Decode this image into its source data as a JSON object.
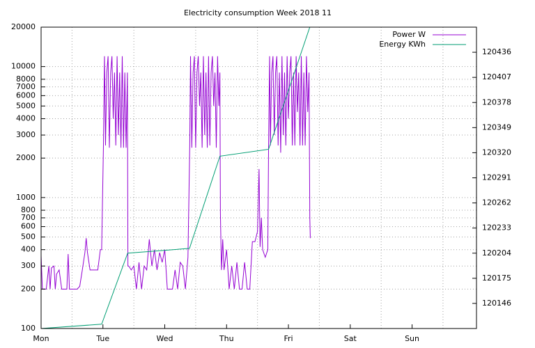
{
  "chart_data": {
    "type": "line",
    "title": "Electricity consumption Week 2018 11",
    "xlim": [
      0,
      169
    ],
    "xticks": [
      {
        "value": 0,
        "label": "Mon"
      },
      {
        "value": 24,
        "label": "Tue"
      },
      {
        "value": 48,
        "label": "Wed"
      },
      {
        "value": 72,
        "label": "Thu"
      },
      {
        "value": 96,
        "label": "Fri"
      },
      {
        "value": 120,
        "label": "Sat"
      },
      {
        "value": 144,
        "label": "Sun"
      }
    ],
    "xgrid": [
      12,
      36,
      60,
      84,
      108,
      132,
      156
    ],
    "ylim": [
      100,
      20000
    ],
    "log_y": true,
    "yticks": [
      100,
      200,
      300,
      400,
      500,
      600,
      700,
      800,
      1000,
      2000,
      3000,
      4000,
      5000,
      6000,
      7000,
      8000,
      10000,
      20000
    ],
    "y2lim": [
      120117,
      120465
    ],
    "y2ticks": [
      120146,
      120175,
      120204,
      120233,
      120262,
      120291,
      120320,
      120349,
      120378,
      120407,
      120436
    ],
    "grid": true,
    "legend": "top-right",
    "series": [
      {
        "name": "Power W",
        "color": "#9400d3",
        "x": [
          0,
          0.5,
          1,
          2,
          3,
          3.5,
          4,
          5,
          5.5,
          6,
          7,
          8,
          9,
          10,
          10.5,
          11,
          12,
          13,
          14,
          15,
          16,
          17,
          17.5,
          18,
          19,
          20,
          21,
          22,
          23,
          23.5,
          24.2,
          24.6,
          25,
          25.5,
          26,
          26.5,
          27,
          27.5,
          28,
          28.5,
          29,
          29.5,
          30,
          30.5,
          31,
          31.5,
          32,
          32.5,
          33,
          33.5,
          33.7,
          34,
          35,
          36,
          37,
          38,
          39,
          40,
          41,
          42,
          43,
          44,
          45,
          46,
          47,
          48,
          49,
          50,
          51,
          52,
          53,
          54,
          55,
          56,
          57,
          57.7,
          58,
          58.5,
          59,
          59.5,
          60,
          60.5,
          61,
          61.5,
          62,
          62.5,
          63,
          63.5,
          64,
          64.5,
          65,
          65.5,
          66,
          66.5,
          67,
          67.5,
          68,
          68.5,
          69,
          69.4,
          69.6,
          70,
          70.5,
          71,
          72,
          73,
          74,
          75,
          76,
          77,
          78,
          79,
          80,
          81,
          82,
          83,
          84,
          84.6,
          85,
          85.5,
          86,
          87,
          88,
          88.3,
          88.7,
          89,
          89.5,
          90,
          90.5,
          91,
          91.5,
          92,
          92.5,
          93,
          93.5,
          94,
          94.5,
          95,
          95.5,
          96,
          96.5,
          97,
          97.5,
          98,
          98.5,
          99,
          99.5,
          100,
          100.5,
          101,
          101.5,
          102,
          102.5,
          103,
          103.5,
          104,
          104.3,
          104.5
        ],
        "values": [
          360,
          200,
          200,
          200,
          300,
          200,
          290,
          300,
          200,
          260,
          280,
          200,
          200,
          200,
          370,
          200,
          200,
          200,
          200,
          210,
          280,
          380,
          490,
          380,
          280,
          280,
          280,
          280,
          400,
          400,
          2500,
          12000,
          2500,
          9000,
          12000,
          2400,
          9000,
          12000,
          4000,
          9000,
          2500,
          12000,
          3000,
          9000,
          2400,
          12000,
          2400,
          9000,
          2400,
          9000,
          300,
          300,
          280,
          300,
          200,
          320,
          200,
          300,
          280,
          480,
          300,
          400,
          280,
          380,
          320,
          400,
          200,
          200,
          200,
          280,
          200,
          320,
          300,
          200,
          350,
          2500,
          12000,
          2400,
          9000,
          12000,
          2400,
          9000,
          12000,
          5000,
          9000,
          2400,
          12000,
          3000,
          9000,
          2400,
          12000,
          2500,
          9000,
          12000,
          5000,
          9000,
          2400,
          12000,
          5000,
          9000,
          760,
          280,
          480,
          280,
          400,
          200,
          300,
          200,
          320,
          200,
          200,
          320,
          200,
          200,
          460,
          460,
          550,
          1650,
          420,
          700,
          400,
          350,
          400,
          2500,
          12000,
          2500,
          9000,
          12000,
          3000,
          9000,
          12000,
          2500,
          9000,
          2200,
          12000,
          3000,
          9000,
          2500,
          12000,
          4000,
          9000,
          12000,
          2500,
          9000,
          2500,
          12000,
          4500,
          9000,
          2500,
          12000,
          2500,
          9000,
          2500,
          12000,
          4500,
          9000,
          700,
          490
        ]
      },
      {
        "name": "Energy KWh",
        "color": "#009e73",
        "axis": "y2",
        "x": [
          0,
          23.5,
          33.6,
          57.6,
          69.4,
          88.3,
          104.3
        ],
        "values": [
          120117,
          120122,
          120204,
          120209.5,
          120316,
          120324,
          120465
        ]
      }
    ]
  }
}
